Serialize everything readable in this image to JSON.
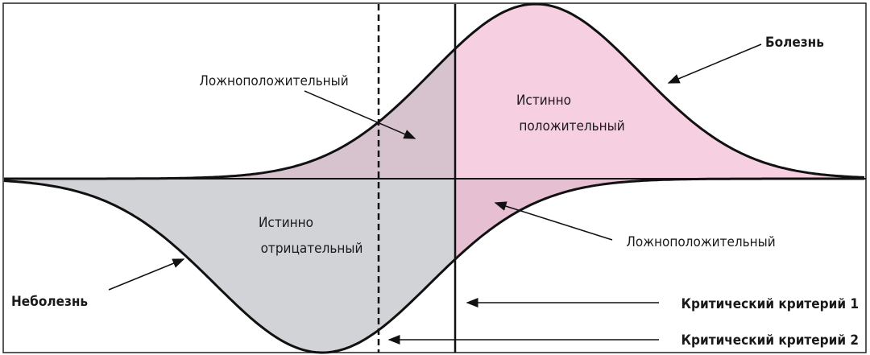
{
  "labels": {
    "false_positive_top": "Ложноположительный",
    "true_positive": [
      "Истинно",
      "положительный"
    ],
    "disease": "Болезнь",
    "true_negative": [
      "Истинно",
      "отрицательный"
    ],
    "false_positive_bottom": "Ложноположительный",
    "no_disease": "Неболезнь",
    "criterion_1": "Критический критерий 1",
    "criterion_2": "Критический критерий 2"
  }
}
